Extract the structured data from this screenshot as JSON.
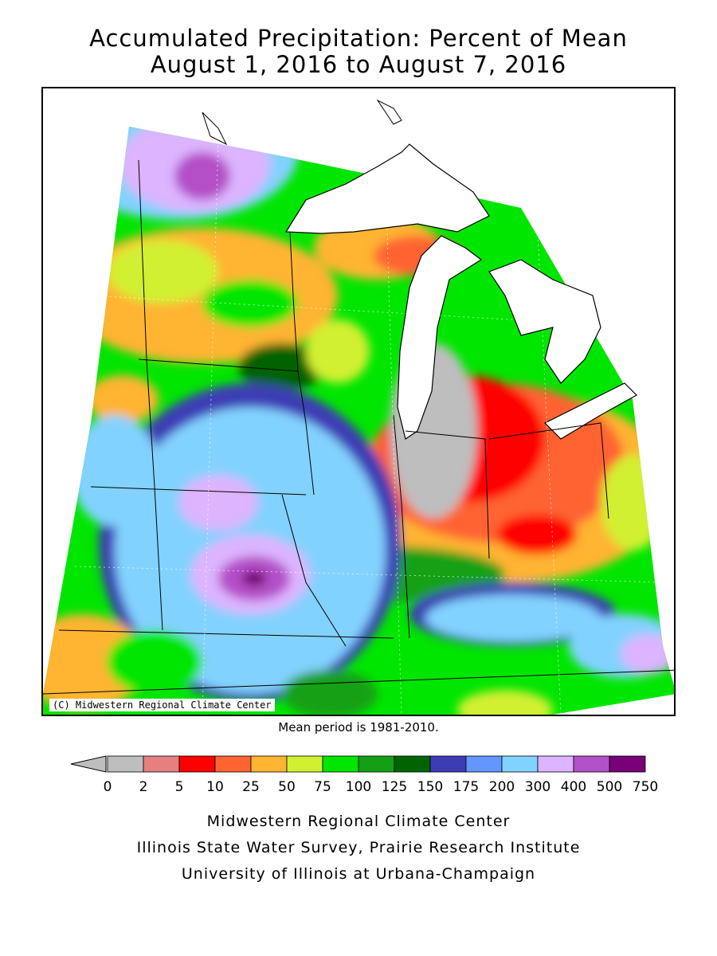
{
  "title": {
    "line1": "Accumulated Precipitation: Percent of Mean",
    "line2": "August 1, 2016 to August 7, 2016"
  },
  "map": {
    "copyright": "(C) Midwestern Regional Climate Center",
    "mean_note": "Mean period is 1981-2010."
  },
  "legend": {
    "below_color": "#bebebe",
    "bins": [
      {
        "label": "0",
        "color": "#bebebe"
      },
      {
        "label": "2",
        "color": "#e68080"
      },
      {
        "label": "5",
        "color": "#ff0000"
      },
      {
        "label": "10",
        "color": "#ff6432"
      },
      {
        "label": "25",
        "color": "#ffb432"
      },
      {
        "label": "50",
        "color": "#d2f032"
      },
      {
        "label": "75",
        "color": "#00e600"
      },
      {
        "label": "100",
        "color": "#14a014"
      },
      {
        "label": "125",
        "color": "#006400"
      },
      {
        "label": "150",
        "color": "#3c3cb4"
      },
      {
        "label": "175",
        "color": "#6496ff"
      },
      {
        "label": "200",
        "color": "#82d2ff"
      },
      {
        "label": "300",
        "color": "#dcb4ff"
      },
      {
        "label": "400",
        "color": "#b450c8"
      },
      {
        "label": "500",
        "color": "#780078"
      }
    ],
    "end_label": "750"
  },
  "footer": {
    "line1": "Midwestern Regional Climate Center",
    "line2": "Illinois State Water Survey, Prairie Research Institute",
    "line3": "University of Illinois at Urbana-Champaign"
  }
}
